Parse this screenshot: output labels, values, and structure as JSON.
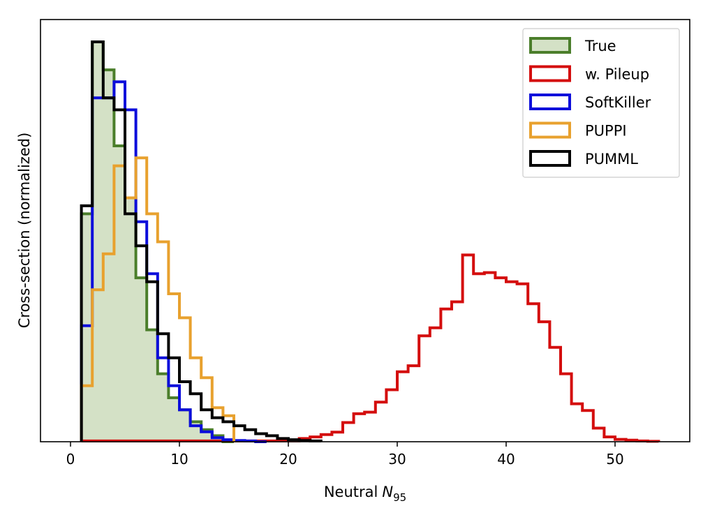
{
  "chart_data": {
    "type": "histogram",
    "xlabel": "Neutral",
    "xlabel_symbol": "N",
    "xlabel_subscript": "95",
    "ylabel": "Cross-section (normalized)",
    "xlim": [
      -2.5,
      56.8
    ],
    "ylim": [
      0,
      1.0
    ],
    "xticks": [
      0,
      10,
      20,
      30,
      40,
      50
    ],
    "xtick_labels": [
      "0",
      "10",
      "20",
      "30",
      "40",
      "50"
    ],
    "y_ticks_shown": false,
    "legend_position": "top-right",
    "bin_width": 1,
    "series": [
      {
        "name": "True",
        "color": "#4b7e2b",
        "fill": "#d4e1c6",
        "filled": true,
        "x": [
          1,
          2,
          3,
          4,
          5,
          6,
          7,
          8,
          9,
          10,
          11,
          12,
          13,
          14
        ],
        "values": [
          0.57,
          1.0,
          0.93,
          0.74,
          0.61,
          0.41,
          0.28,
          0.17,
          0.11,
          0.08,
          0.05,
          0.03,
          0.015,
          0.0
        ]
      },
      {
        "name": "w. Pileup",
        "color": "#d40d0d",
        "filled": false,
        "x": [
          1,
          2,
          3,
          4,
          5,
          6,
          7,
          8,
          9,
          10,
          11,
          12,
          13,
          14,
          15,
          16,
          17,
          18,
          19,
          20,
          21,
          22,
          23,
          24,
          25,
          26,
          27,
          28,
          29,
          30,
          31,
          32,
          33,
          34,
          35,
          36,
          37,
          38,
          39,
          40,
          41,
          42,
          43,
          44,
          45,
          46,
          47,
          48,
          49,
          50,
          51,
          52,
          53
        ],
        "values": [
          0.002,
          0.002,
          0.002,
          0.002,
          0.002,
          0.002,
          0.002,
          0.002,
          0.002,
          0.002,
          0.002,
          0.002,
          0.002,
          0.002,
          0.002,
          0.002,
          0.002,
          0.002,
          0.002,
          0.002,
          0.008,
          0.012,
          0.018,
          0.024,
          0.048,
          0.07,
          0.074,
          0.099,
          0.13,
          0.175,
          0.19,
          0.265,
          0.285,
          0.332,
          0.35,
          0.467,
          0.42,
          0.423,
          0.41,
          0.4,
          0.395,
          0.345,
          0.3,
          0.236,
          0.17,
          0.095,
          0.078,
          0.034,
          0.012,
          0.006,
          0.004,
          0.002,
          0.001
        ]
      },
      {
        "name": "SoftKiller",
        "color": "#0c0ddb",
        "filled": false,
        "x": [
          1,
          2,
          3,
          4,
          5,
          6,
          7,
          8,
          9,
          10,
          11,
          12,
          13,
          14,
          15,
          16,
          17
        ],
        "values": [
          0.29,
          0.86,
          0.86,
          0.9,
          0.83,
          0.55,
          0.42,
          0.21,
          0.14,
          0.08,
          0.04,
          0.025,
          0.01,
          0.005,
          0.003,
          0.002,
          0.0
        ]
      },
      {
        "name": "PUPPI",
        "color": "#e8a12e",
        "filled": false,
        "x": [
          1,
          2,
          3,
          4,
          5,
          6,
          7,
          8,
          9,
          10,
          11,
          12,
          13,
          14
        ],
        "values": [
          0.14,
          0.38,
          0.47,
          0.69,
          0.61,
          0.71,
          0.57,
          0.5,
          0.37,
          0.31,
          0.21,
          0.16,
          0.085,
          0.065
        ]
      },
      {
        "name": "PUMML",
        "color": "#000000",
        "filled": false,
        "x": [
          1,
          2,
          3,
          4,
          5,
          6,
          7,
          8,
          9,
          10,
          11,
          12,
          13,
          14,
          15,
          16,
          17,
          18,
          19,
          20,
          21,
          22
        ],
        "values": [
          0.59,
          1.0,
          0.86,
          0.83,
          0.57,
          0.49,
          0.4,
          0.27,
          0.21,
          0.15,
          0.12,
          0.08,
          0.06,
          0.05,
          0.04,
          0.03,
          0.02,
          0.015,
          0.008,
          0.005,
          0.003,
          0.002
        ]
      }
    ]
  }
}
